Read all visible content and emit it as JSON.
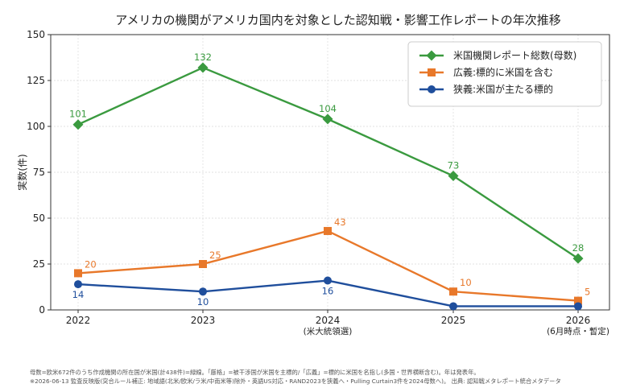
{
  "chart_data": {
    "type": "line",
    "title": "アメリカの機関がアメリカ国内を対象とした認知戦・影響工作レポートの年次推移",
    "xlabel": "",
    "ylabel": "実数(件)",
    "categories": [
      "2022",
      "2023",
      "2024",
      "2025",
      "2026"
    ],
    "category_sublabels": [
      "",
      "",
      "(米大統領選)",
      "",
      "(6月時点・暫定)"
    ],
    "ylim": [
      0,
      150
    ],
    "yticks": [
      "0",
      "25",
      "50",
      "75",
      "100",
      "125",
      "150"
    ],
    "grid": true,
    "legend_position": "top-right",
    "series": [
      {
        "name": "米国機関レポート総数(母数)",
        "color": "#3a9a3f",
        "marker": "diamond",
        "values": [
          101,
          132,
          104,
          73,
          28
        ],
        "labels": [
          "101",
          "132",
          "104",
          "73",
          "28"
        ]
      },
      {
        "name": "広義:標的に米国を含む",
        "color": "#e8782a",
        "marker": "square",
        "values": [
          20,
          25,
          43,
          10,
          5
        ],
        "labels": [
          "20",
          "25",
          "43",
          "10",
          "5"
        ]
      },
      {
        "name": "狭義:米国が主たる標的",
        "color": "#1f4e9c",
        "marker": "circle",
        "values": [
          14,
          10,
          16,
          2,
          2
        ],
        "labels": [
          "14",
          "10",
          "16",
          "",
          ""
        ]
      }
    ],
    "notes": [
      "母数=欧米672件のうち作成機関の所在国が米国(計438件)=緑線。「厳格」=被干渉国が米国を主標的/「広義」=標的に米国を名指し(多国・世界横断含む)。年は発表年。",
      "※2026-06-13 監査反映版(突合ルール補正: 地域語(北米/欧米/ラ米/中南米等)除外・英語US対応・RAND2023を狭義へ・Pulling Curtain3件を2024母数へ)。 出典: 認知戦メタレポート統合メタデータ"
    ]
  }
}
